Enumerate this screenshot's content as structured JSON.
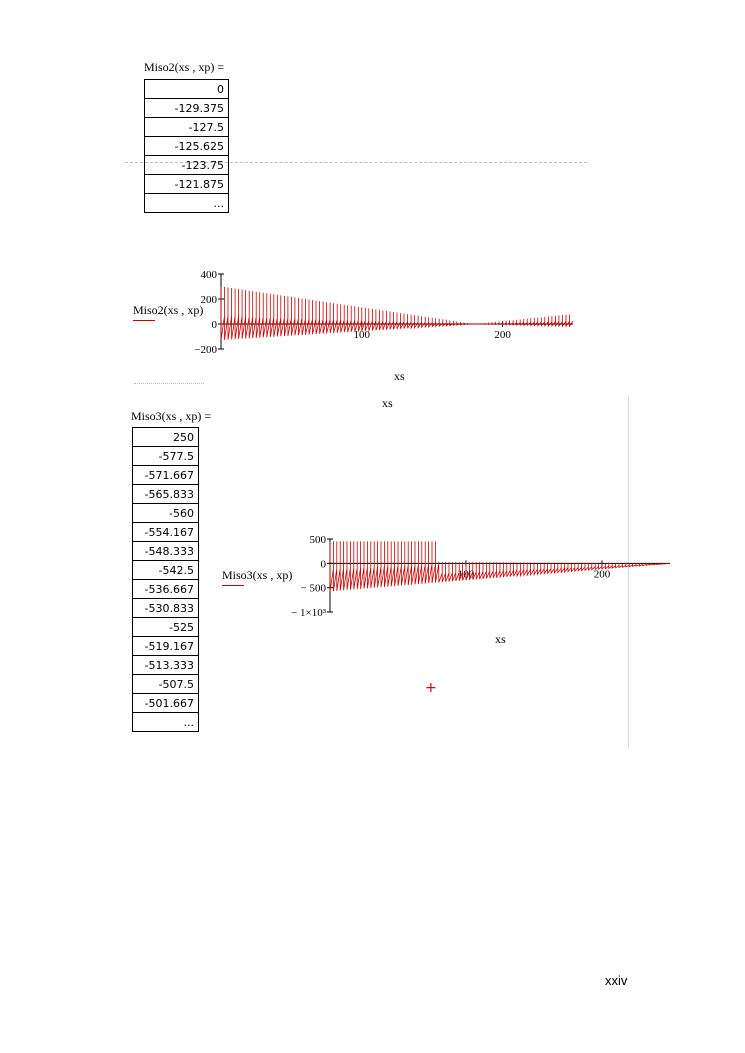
{
  "colors": {
    "trace": "#cc0000"
  },
  "block1": {
    "expr": "Miso2(xs , xp)  =",
    "rows": [
      "0",
      "-129.375",
      "-127.5",
      "-125.625",
      "-123.75",
      "-121.875",
      "..."
    ]
  },
  "chart1": {
    "ylabel": "Miso2(xs , xp)",
    "xlabel": "xs",
    "yticks": [
      "400",
      "200",
      "0",
      "−200"
    ],
    "xticks": [
      "100",
      "200"
    ]
  },
  "stray_label": "xs",
  "block2": {
    "expr": "Miso3(xs , xp)  =",
    "rows": [
      "250",
      "-577.5",
      "-571.667",
      "-565.833",
      "-560",
      "-554.167",
      "-548.333",
      "-542.5",
      "-536.667",
      "-530.833",
      "-525",
      "-519.167",
      "-513.333",
      "-507.5",
      "-501.667",
      "..."
    ]
  },
  "chart2": {
    "ylabel": "Miso3(xs , xp)",
    "xlabel": "xs",
    "yticks": [
      "500",
      "0",
      "− 500",
      "− 1×10³"
    ],
    "xticks": [
      "100",
      "200"
    ]
  },
  "cursor_glyph": "+",
  "page_number": "xxiv",
  "chart_data": [
    {
      "type": "line",
      "title": "",
      "xlabel": "xs",
      "ylabel": "Miso2(xs , xp)",
      "xlim": [
        0,
        250
      ],
      "ylim": [
        -200,
        400
      ],
      "series": [
        {
          "name": "Miso2(xs , xp)",
          "x": [
            0,
            1,
            2,
            3,
            4,
            5
          ],
          "values": [
            0,
            -129.375,
            -127.5,
            -125.625,
            -123.75,
            -121.875
          ]
        }
      ]
    },
    {
      "type": "line",
      "title": "",
      "xlabel": "xs",
      "ylabel": "Miso3(xs , xp)",
      "xlim": [
        0,
        250
      ],
      "ylim": [
        -1000,
        500
      ],
      "series": [
        {
          "name": "Miso3(xs , xp)",
          "x": [
            0,
            1,
            2,
            3,
            4,
            5,
            6,
            7,
            8,
            9,
            10,
            11,
            12,
            13,
            14
          ],
          "values": [
            250,
            -577.5,
            -571.667,
            -565.833,
            -560,
            -554.167,
            -548.333,
            -542.5,
            -536.667,
            -530.833,
            -525,
            -519.167,
            -513.333,
            -507.5,
            -501.667
          ]
        }
      ]
    }
  ]
}
